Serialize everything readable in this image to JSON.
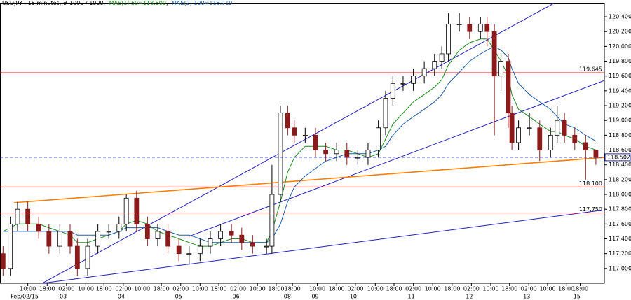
{
  "chart_data": {
    "type": "candlestick",
    "title": "USDJPY , 15 minutes, # 1000 / 1000,",
    "x": [
      5,
      17,
      29,
      46,
      64,
      81,
      99,
      116,
      128,
      145,
      162,
      180,
      197,
      209,
      226,
      244,
      261,
      278,
      296,
      313,
      331,
      348,
      365,
      383,
      400,
      418,
      441,
      450,
      464,
      476,
      487,
      505,
      522,
      539,
      557,
      574,
      592,
      609,
      626,
      638,
      650,
      667,
      684,
      702,
      719,
      731,
      742,
      760,
      777,
      795,
      806,
      818,
      829,
      841,
      847,
      858,
      876,
      893,
      911,
      922,
      934,
      951,
      969,
      986
    ],
    "open": [
      117.2,
      117.0,
      117.6,
      117.8,
      117.6,
      117.5,
      117.3,
      117.5,
      117.3,
      117.0,
      117.3,
      117.5,
      117.5,
      117.6,
      117.95,
      117.6,
      117.4,
      117.5,
      117.3,
      117.2,
      117.2,
      117.3,
      117.4,
      117.5,
      117.45,
      117.35,
      117.3,
      117.3,
      118.0,
      119.1,
      118.9,
      118.8,
      118.8,
      118.6,
      118.55,
      118.6,
      118.5,
      118.5,
      118.6,
      118.9,
      119.3,
      119.5,
      119.5,
      119.6,
      119.7,
      119.8,
      119.9,
      120.3,
      120.3,
      120.2,
      120.3,
      120.2,
      119.6,
      119.8,
      119.1,
      118.7,
      118.9,
      118.9,
      118.6,
      118.8,
      119.0,
      118.8,
      118.7,
      118.6
    ],
    "high": [
      117.3,
      117.7,
      117.9,
      117.9,
      117.7,
      117.6,
      117.6,
      117.6,
      117.4,
      117.4,
      117.6,
      117.6,
      117.7,
      118.0,
      118.05,
      117.7,
      117.6,
      117.6,
      117.4,
      117.3,
      117.4,
      117.5,
      117.6,
      117.6,
      117.55,
      117.45,
      117.4,
      118.4,
      119.2,
      119.2,
      119.0,
      118.9,
      118.9,
      118.7,
      118.7,
      118.7,
      118.6,
      118.7,
      119.0,
      119.4,
      119.6,
      119.6,
      119.7,
      119.8,
      119.9,
      120.0,
      120.45,
      120.45,
      120.4,
      120.4,
      120.4,
      120.3,
      119.9,
      119.9,
      119.2,
      119.0,
      119.1,
      119.0,
      118.9,
      119.2,
      119.1,
      118.9,
      118.8,
      118.6
    ],
    "low": [
      116.9,
      116.9,
      117.5,
      117.5,
      117.4,
      117.2,
      117.2,
      117.2,
      116.9,
      116.9,
      117.2,
      117.4,
      117.4,
      117.5,
      117.5,
      117.3,
      117.3,
      117.2,
      117.1,
      117.05,
      117.1,
      117.2,
      117.3,
      117.35,
      117.25,
      117.2,
      117.2,
      117.2,
      117.9,
      118.8,
      118.7,
      118.7,
      118.5,
      118.45,
      118.45,
      118.4,
      118.4,
      118.4,
      118.5,
      118.8,
      119.2,
      119.4,
      119.4,
      119.5,
      119.6,
      119.7,
      119.8,
      120.2,
      120.1,
      120.1,
      120.0,
      118.8,
      119.4,
      118.9,
      118.6,
      118.6,
      118.8,
      118.45,
      118.5,
      118.7,
      118.7,
      118.6,
      118.2,
      118.4
    ],
    "close": [
      117.0,
      117.6,
      117.8,
      117.6,
      117.5,
      117.3,
      117.5,
      117.3,
      117.0,
      117.3,
      117.5,
      117.5,
      117.6,
      117.95,
      117.6,
      117.4,
      117.5,
      117.3,
      117.2,
      117.2,
      117.3,
      117.4,
      117.5,
      117.45,
      117.35,
      117.3,
      117.3,
      118.0,
      119.1,
      118.9,
      118.8,
      118.8,
      118.6,
      118.55,
      118.6,
      118.5,
      118.5,
      118.6,
      118.9,
      119.3,
      119.5,
      119.5,
      119.6,
      119.7,
      119.8,
      119.9,
      120.3,
      120.3,
      120.2,
      120.3,
      120.2,
      119.6,
      119.8,
      119.1,
      118.7,
      118.9,
      118.9,
      118.6,
      118.8,
      119.0,
      118.8,
      118.7,
      118.6,
      118.5
    ],
    "up_color": "#000000",
    "down_color": "#8b1a1a",
    "series": [
      {
        "name": "MAE(1) 50=118.600",
        "color": "#1e8a1e",
        "values": [
          117.5,
          117.55,
          117.6,
          117.6,
          117.6,
          117.55,
          117.5,
          117.45,
          117.35,
          117.35,
          117.4,
          117.45,
          117.5,
          117.6,
          117.65,
          117.6,
          117.5,
          117.45,
          117.4,
          117.35,
          117.3,
          117.3,
          117.35,
          117.4,
          117.4,
          117.35,
          117.35,
          117.5,
          117.9,
          118.3,
          118.5,
          118.65,
          118.65,
          118.65,
          118.6,
          118.6,
          118.55,
          118.5,
          118.55,
          118.75,
          118.95,
          119.1,
          119.25,
          119.35,
          119.45,
          119.55,
          119.75,
          119.95,
          120.05,
          120.1,
          120.1,
          119.95,
          119.8,
          119.6,
          119.35,
          119.15,
          119.05,
          118.95,
          118.85,
          118.85,
          118.8,
          118.75,
          118.65,
          118.6
        ]
      },
      {
        "name": "MAE(2) 100=118.719",
        "color": "#1f5fa8",
        "values": [
          117.5,
          117.5,
          117.5,
          117.5,
          117.5,
          117.5,
          117.5,
          117.5,
          117.45,
          117.45,
          117.45,
          117.45,
          117.5,
          117.55,
          117.55,
          117.55,
          117.55,
          117.5,
          117.45,
          117.45,
          117.4,
          117.35,
          117.35,
          117.35,
          117.35,
          117.35,
          117.35,
          117.4,
          117.6,
          117.9,
          118.1,
          118.25,
          118.35,
          118.45,
          118.5,
          118.55,
          118.55,
          118.55,
          118.6,
          118.65,
          118.8,
          118.95,
          119.05,
          119.15,
          119.25,
          119.35,
          119.5,
          119.65,
          119.8,
          119.9,
          119.95,
          120.0,
          119.95,
          119.85,
          119.7,
          119.5,
          119.35,
          119.25,
          119.15,
          119.05,
          118.95,
          118.9,
          118.8,
          118.72
        ]
      }
    ],
    "trend_lines": [
      {
        "color": "#2020c0",
        "x": [
          70,
          916
        ],
        "y": [
          116.8,
          120.58
        ]
      },
      {
        "color": "#2020c0",
        "x": [
          313,
          1000
        ],
        "y": [
          117.434,
          119.54
        ]
      },
      {
        "color": "#2020c0",
        "x": [
          70,
          1000
        ],
        "y": [
          116.8,
          117.79
        ]
      },
      {
        "color": "#ff7f00",
        "x": [
          23,
          1000
        ],
        "y": [
          117.888,
          118.5
        ]
      }
    ],
    "levels": [
      119.645,
      {
        "value": 118.1,
        "label": "118.100"
      },
      {
        "value": 117.75,
        "label": "117.750"
      }
    ],
    "level_color": "#e02020",
    "current_price": 118.502,
    "xlim": [
      0,
      1000
    ],
    "ylim": [
      116.8,
      120.58
    ],
    "yticks": [
      {
        "value": 117.0,
        "label": "117.000"
      },
      {
        "value": 117.2,
        "label": "117.200"
      },
      {
        "value": 117.4,
        "label": "117.400"
      },
      {
        "value": 117.6,
        "label": "117.600"
      },
      {
        "value": 117.8,
        "label": "117.800"
      },
      {
        "value": 118.0,
        "label": "118.000"
      },
      {
        "value": 118.2,
        "label": "118.200"
      },
      {
        "value": 118.4,
        "label": "118.400"
      },
      {
        "value": 118.6,
        "label": "118.600"
      },
      {
        "value": 118.8,
        "label": "118.800"
      },
      {
        "value": 119.0,
        "label": "119.000"
      },
      {
        "value": 119.2,
        "label": "119.200"
      },
      {
        "value": 119.4,
        "label": "119.400"
      },
      {
        "value": 119.6,
        "label": "119.600"
      },
      {
        "value": 119.8,
        "label": "119.800"
      },
      {
        "value": 120.0,
        "label": "120.000"
      },
      {
        "value": 120.2,
        "label": "120.200"
      },
      {
        "value": 120.4,
        "label": "120.400"
      }
    ],
    "xticks": [
      {
        "value": 46,
        "label": "10:00"
      },
      {
        "value": 78,
        "label": "18:00"
      },
      {
        "value": 110,
        "label": "02:00"
      },
      {
        "value": 142,
        "label": "10:00"
      },
      {
        "value": 172,
        "label": "18:00"
      },
      {
        "value": 204,
        "label": "02:00"
      },
      {
        "value": 235,
        "label": "10:00"
      },
      {
        "value": 267,
        "label": "18:00"
      },
      {
        "value": 299,
        "label": "02:00"
      },
      {
        "value": 331,
        "label": "10:00"
      },
      {
        "value": 362,
        "label": "18:00"
      },
      {
        "value": 394,
        "label": "02:00"
      },
      {
        "value": 426,
        "label": "10:00"
      },
      {
        "value": 457,
        "label": "18:00"
      },
      {
        "value": 484,
        "label": "18:00"
      },
      {
        "value": 525,
        "label": "10:00"
      },
      {
        "value": 557,
        "label": "18:00"
      },
      {
        "value": 588,
        "label": "02:00"
      },
      {
        "value": 621,
        "label": "10:00"
      },
      {
        "value": 652,
        "label": "18:00"
      },
      {
        "value": 684,
        "label": "02:00"
      },
      {
        "value": 716,
        "label": "10:00"
      },
      {
        "value": 748,
        "label": "18:00"
      },
      {
        "value": 780,
        "label": "02:00"
      },
      {
        "value": 812,
        "label": "10:00"
      },
      {
        "value": 843,
        "label": "18:00"
      },
      {
        "value": 875,
        "label": "02:00"
      },
      {
        "value": 906,
        "label": "10:00"
      },
      {
        "value": 937,
        "label": "18:00"
      },
      {
        "value": 960,
        "label": "18:00"
      }
    ],
    "date_ticks": [
      {
        "value": 21,
        "label": "Feb/02/15"
      },
      {
        "value": 108,
        "label": "03"
      },
      {
        "value": 204,
        "label": "04"
      },
      {
        "value": 299,
        "label": "05"
      },
      {
        "value": 394,
        "label": "06"
      },
      {
        "value": 479,
        "label": "08"
      },
      {
        "value": 525,
        "label": "09"
      },
      {
        "value": 588,
        "label": "10"
      },
      {
        "value": 684,
        "label": "11"
      },
      {
        "value": 780,
        "label": "12"
      },
      {
        "value": 875,
        "label": "13"
      },
      {
        "value": 958,
        "label": "15"
      }
    ]
  }
}
